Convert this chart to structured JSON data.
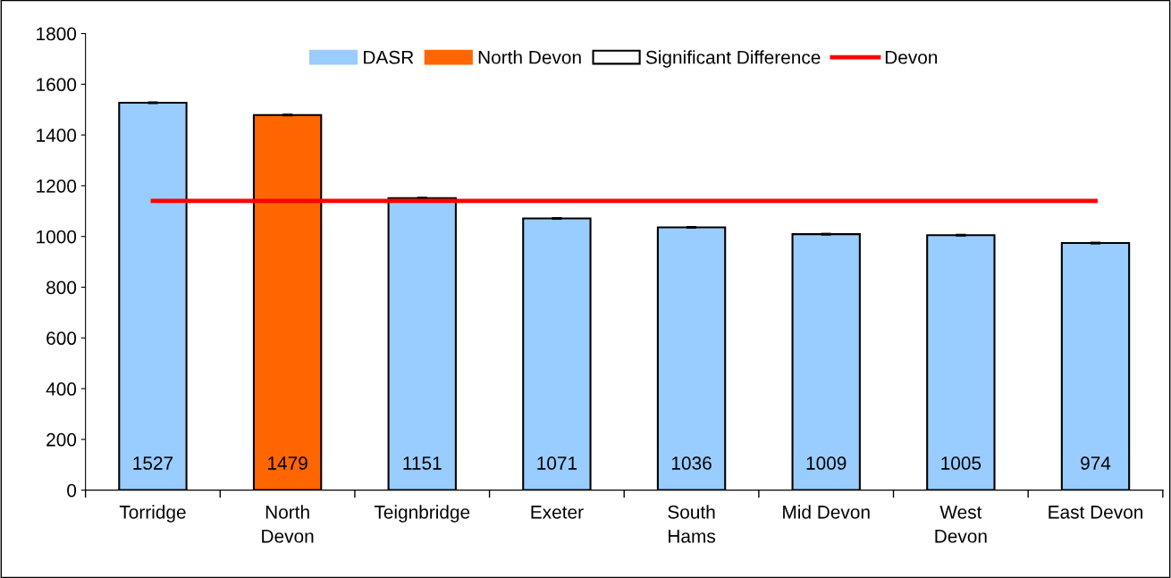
{
  "chart_data": {
    "type": "bar",
    "categories": [
      "Torridge",
      "North\nDevon",
      "Teignbridge",
      "Exeter",
      "South\nHams",
      "Mid Devon",
      "West\nDevon",
      "East Devon"
    ],
    "series": [
      {
        "name": "DASR",
        "color": "#99ccff",
        "values": [
          1527,
          null,
          1151,
          1071,
          1036,
          1009,
          1005,
          974
        ],
        "errors": [
          3,
          null,
          3,
          3,
          3,
          3,
          3,
          3
        ],
        "value_labels": [
          "1527",
          null,
          "1151",
          "1071",
          "1036",
          "1009",
          "1005",
          "974"
        ]
      },
      {
        "name": "North Devon",
        "color": "#ff6600",
        "values": [
          null,
          1479,
          null,
          null,
          null,
          null,
          null,
          null
        ],
        "errors": [
          null,
          3,
          null,
          null,
          null,
          null,
          null,
          null
        ],
        "value_labels": [
          null,
          "1479",
          null,
          null,
          null,
          null,
          null,
          null
        ]
      },
      {
        "name": "Significant Difference",
        "color": "#ffffff",
        "values": [
          null,
          null,
          null,
          null,
          null,
          null,
          null,
          null
        ]
      },
      {
        "name": "Devon",
        "type": "line",
        "color": "#ff0000",
        "values": [
          1140,
          1140,
          1140,
          1140,
          1140,
          1140,
          1140,
          1140
        ]
      }
    ],
    "ylim": [
      0,
      1800
    ],
    "yticks": [
      0,
      200,
      400,
      600,
      800,
      1000,
      1200,
      1400,
      1600,
      1800
    ],
    "legend": "top",
    "grid": false
  }
}
